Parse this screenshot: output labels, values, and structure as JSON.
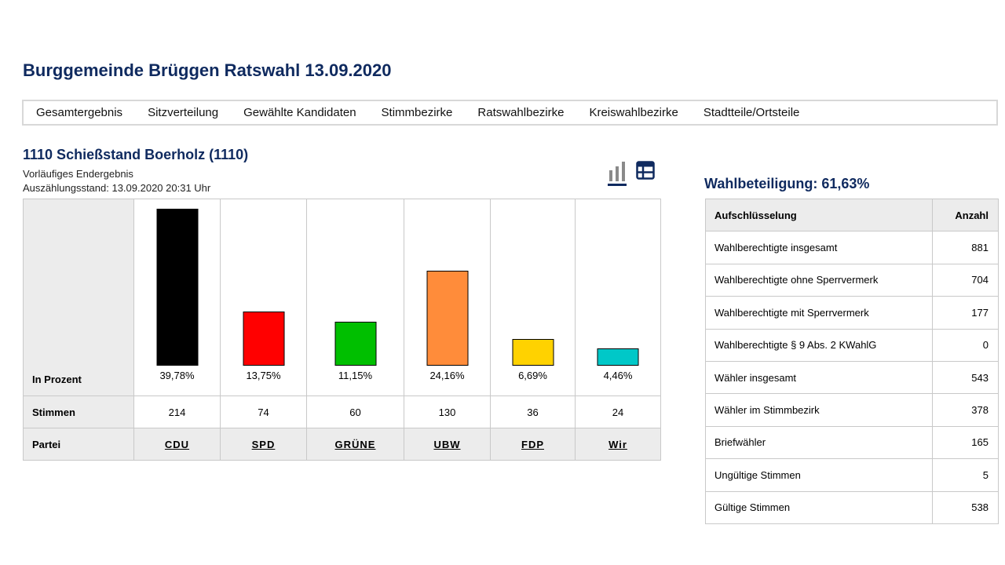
{
  "page": {
    "title": "Burggemeinde Brüggen Ratswahl 13.09.2020"
  },
  "nav": {
    "items": [
      "Gesamtergebnis",
      "Sitzverteilung",
      "Gewählte Kandidaten",
      "Stimmbezirke",
      "Ratswahlbezirke",
      "Kreiswahlbezirke",
      "Stadtteile/Ortsteile"
    ]
  },
  "district": {
    "title": "1110 Schießstand Boerholz (1110)",
    "status": "Vorläufiges Endergebnis",
    "count_time": "Auszählungsstand: 13.09.2020 20:31 Uhr"
  },
  "view_toggle": {
    "icons": [
      "bar-chart-icon",
      "table-icon"
    ],
    "active": "bar-chart-icon"
  },
  "results": {
    "row_labels": {
      "percent": "In Prozent",
      "votes": "Stimmen",
      "party": "Partei"
    }
  },
  "chart_data": {
    "type": "bar",
    "categories": [
      "CDU",
      "SPD",
      "GRÜNE",
      "UBW",
      "FDP",
      "Wir"
    ],
    "values": [
      39.78,
      13.75,
      11.15,
      24.16,
      6.69,
      4.46
    ],
    "value_labels": [
      "39,78%",
      "13,75%",
      "11,15%",
      "24,16%",
      "6,69%",
      "4,46%"
    ],
    "votes": [
      "214",
      "74",
      "60",
      "130",
      "36",
      "24"
    ],
    "colors": [
      "#000000",
      "#ff0000",
      "#00bf00",
      "#ff8c3a",
      "#ffd200",
      "#00c8c8"
    ],
    "ylim": [
      0,
      39.78
    ],
    "title": "",
    "xlabel": "",
    "ylabel": ""
  },
  "turnout": {
    "label": "Wahlbeteiligung: 61,63%"
  },
  "breakdown": {
    "headers": {
      "name": "Aufschlüsselung",
      "count": "Anzahl"
    },
    "rows": [
      {
        "label": "Wahlberechtigte insgesamt",
        "value": "881"
      },
      {
        "label": "Wahlberechtigte ohne Sperrvermerk",
        "value": "704"
      },
      {
        "label": "Wahlberechtigte mit Sperrvermerk",
        "value": "177"
      },
      {
        "label": "Wahlberechtigte § 9 Abs. 2 KWahlG",
        "value": "0"
      },
      {
        "label": "Wähler insgesamt",
        "value": "543"
      },
      {
        "label": "Wähler im Stimmbezirk",
        "value": "378"
      },
      {
        "label": "Briefwähler",
        "value": "165"
      },
      {
        "label": "Ungültige Stimmen",
        "value": "5"
      },
      {
        "label": "Gültige Stimmen",
        "value": "538"
      }
    ]
  }
}
